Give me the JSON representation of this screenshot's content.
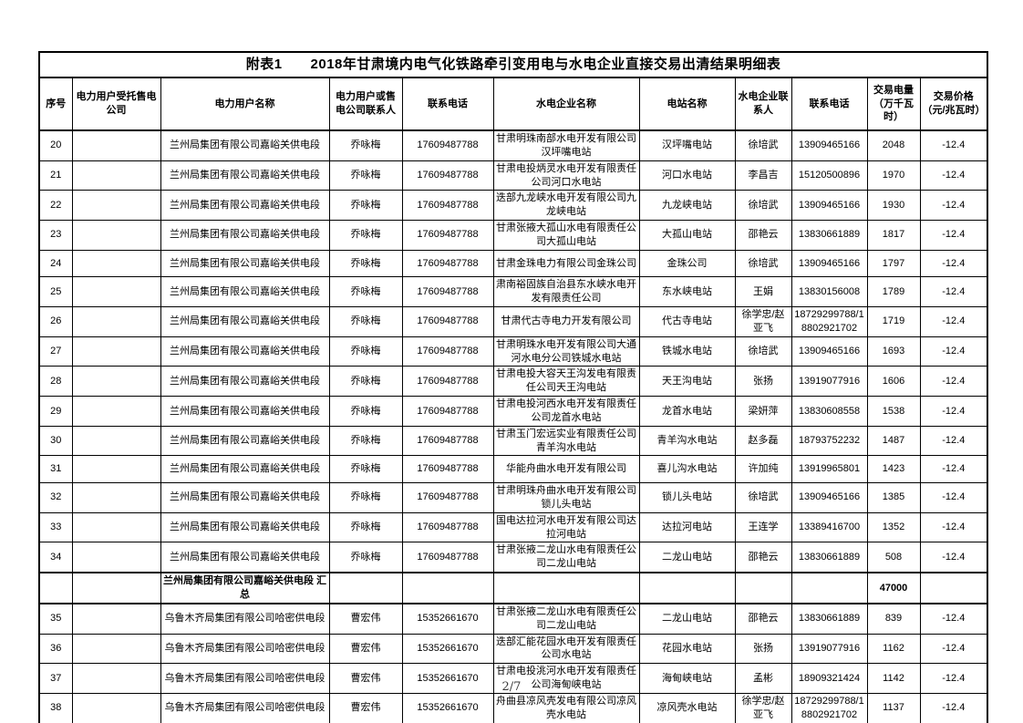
{
  "page": {
    "footer_page_number": "2/7"
  },
  "table": {
    "title": "附表1　　2018年甘肃境内电气化铁路牵引变用电与水电企业直接交易出清结果明细表",
    "columns": [
      "序号",
      "电力用户受托售电公司",
      "电力用户名称",
      "电力用户或售电公司联系人",
      "联系电话",
      "水电企业名称",
      "电站名称",
      "水电企业联系人",
      "联系电话",
      "交易电量（万千瓦时）",
      "交易价格（元/兆瓦时）"
    ],
    "rows": [
      {
        "type": "data",
        "cells": [
          "20",
          "",
          "兰州局集团有限公司嘉峪关供电段",
          "乔咏梅",
          "17609487788",
          "甘肃明珠南部水电开发有限公司汉坪嘴电站",
          "汉坪嘴电站",
          "徐培武",
          "13909465166",
          "2048",
          "-12.4"
        ]
      },
      {
        "type": "data",
        "cells": [
          "21",
          "",
          "兰州局集团有限公司嘉峪关供电段",
          "乔咏梅",
          "17609487788",
          "甘肃电投炳灵水电开发有限责任公司河口水电站",
          "河口水电站",
          "李昌吉",
          "15120500896",
          "1970",
          "-12.4"
        ]
      },
      {
        "type": "data",
        "cells": [
          "22",
          "",
          "兰州局集团有限公司嘉峪关供电段",
          "乔咏梅",
          "17609487788",
          "迭部九龙峡水电开发有限公司九龙峡电站",
          "九龙峡电站",
          "徐培武",
          "13909465166",
          "1930",
          "-12.4"
        ]
      },
      {
        "type": "data",
        "cells": [
          "23",
          "",
          "兰州局集团有限公司嘉峪关供电段",
          "乔咏梅",
          "17609487788",
          "甘肃张掖大孤山水电有限责任公司大孤山电站",
          "大孤山电站",
          "邵艳云",
          "13830661889",
          "1817",
          "-12.4"
        ]
      },
      {
        "type": "data",
        "cells": [
          "24",
          "",
          "兰州局集团有限公司嘉峪关供电段",
          "乔咏梅",
          "17609487788",
          "甘肃金珠电力有限公司金珠公司",
          "金珠公司",
          "徐培武",
          "13909465166",
          "1797",
          "-12.4"
        ]
      },
      {
        "type": "data",
        "cells": [
          "25",
          "",
          "兰州局集团有限公司嘉峪关供电段",
          "乔咏梅",
          "17609487788",
          "肃南裕固族自治县东水峡水电开发有限责任公司",
          "东水峡电站",
          "王娟",
          "13830156008",
          "1789",
          "-12.4"
        ]
      },
      {
        "type": "data",
        "cells": [
          "26",
          "",
          "兰州局集团有限公司嘉峪关供电段",
          "乔咏梅",
          "17609487788",
          "甘肃代古寺电力开发有限公司",
          "代古寺电站",
          "徐学忠/赵亚飞",
          "18729299788/18802921702",
          "1719",
          "-12.4"
        ]
      },
      {
        "type": "data",
        "cells": [
          "27",
          "",
          "兰州局集团有限公司嘉峪关供电段",
          "乔咏梅",
          "17609487788",
          "甘肃明珠水电开发有限公司大通河水电分公司铁城水电站",
          "铁城水电站",
          "徐培武",
          "13909465166",
          "1693",
          "-12.4"
        ]
      },
      {
        "type": "data",
        "cells": [
          "28",
          "",
          "兰州局集团有限公司嘉峪关供电段",
          "乔咏梅",
          "17609487788",
          "甘肃电投大容天王沟发电有限责任公司天王沟电站",
          "天王沟电站",
          "张扬",
          "13919077916",
          "1606",
          "-12.4"
        ]
      },
      {
        "type": "data",
        "cells": [
          "29",
          "",
          "兰州局集团有限公司嘉峪关供电段",
          "乔咏梅",
          "17609487788",
          "甘肃电投河西水电开发有限责任公司龙首水电站",
          "龙首水电站",
          "梁妍萍",
          "13830608558",
          "1538",
          "-12.4"
        ]
      },
      {
        "type": "data",
        "cells": [
          "30",
          "",
          "兰州局集团有限公司嘉峪关供电段",
          "乔咏梅",
          "17609487788",
          "甘肃玉门宏远实业有限责任公司青羊沟水电站",
          "青羊沟水电站",
          "赵多磊",
          "18793752232",
          "1487",
          "-12.4"
        ]
      },
      {
        "type": "data",
        "cells": [
          "31",
          "",
          "兰州局集团有限公司嘉峪关供电段",
          "乔咏梅",
          "17609487788",
          "华能舟曲水电开发有限公司",
          "喜儿沟水电站",
          "许加纯",
          "13919965801",
          "1423",
          "-12.4"
        ]
      },
      {
        "type": "data",
        "cells": [
          "32",
          "",
          "兰州局集团有限公司嘉峪关供电段",
          "乔咏梅",
          "17609487788",
          "甘肃明珠舟曲水电开发有限公司锁儿头电站",
          "锁儿头电站",
          "徐培武",
          "13909465166",
          "1385",
          "-12.4"
        ]
      },
      {
        "type": "data",
        "cells": [
          "33",
          "",
          "兰州局集团有限公司嘉峪关供电段",
          "乔咏梅",
          "17609487788",
          "国电达拉河水电开发有限公司达拉河电站",
          "达拉河电站",
          "王连学",
          "13389416700",
          "1352",
          "-12.4"
        ]
      },
      {
        "type": "data",
        "cells": [
          "34",
          "",
          "兰州局集团有限公司嘉峪关供电段",
          "乔咏梅",
          "17609487788",
          "甘肃张掖二龙山水电有限责任公司二龙山电站",
          "二龙山电站",
          "邵艳云",
          "13830661889",
          "508",
          "-12.4"
        ]
      },
      {
        "type": "summary",
        "cells": [
          "",
          "",
          "兰州局集团有限公司嘉峪关供电段 汇总",
          "",
          "",
          "",
          "",
          "",
          "",
          "47000",
          ""
        ]
      },
      {
        "type": "data",
        "cells": [
          "35",
          "",
          "乌鲁木齐局集团有限公司哈密供电段",
          "曹宏伟",
          "15352661670",
          "甘肃张掖二龙山水电有限责任公司二龙山电站",
          "二龙山电站",
          "邵艳云",
          "13830661889",
          "839",
          "-12.4"
        ]
      },
      {
        "type": "data",
        "cells": [
          "36",
          "",
          "乌鲁木齐局集团有限公司哈密供电段",
          "曹宏伟",
          "15352661670",
          "迭部汇能花园水电开发有限责任公司水电站",
          "花园水电站",
          "张扬",
          "13919077916",
          "1162",
          "-12.4"
        ]
      },
      {
        "type": "data",
        "cells": [
          "37",
          "",
          "乌鲁木齐局集团有限公司哈密供电段",
          "曹宏伟",
          "15352661670",
          "甘肃电投洮河水电开发有限责任公司海甸峡电站",
          "海甸峡电站",
          "孟彬",
          "18909321424",
          "1142",
          "-12.4"
        ]
      },
      {
        "type": "data",
        "cells": [
          "38",
          "",
          "乌鲁木齐局集团有限公司哈密供电段",
          "曹宏伟",
          "15352661670",
          "舟曲县凉风壳发电有限公司凉风壳水电站",
          "凉风壳水电站",
          "徐学忠/赵亚飞",
          "18729299788/18802921702",
          "1137",
          "-12.4"
        ]
      }
    ]
  }
}
